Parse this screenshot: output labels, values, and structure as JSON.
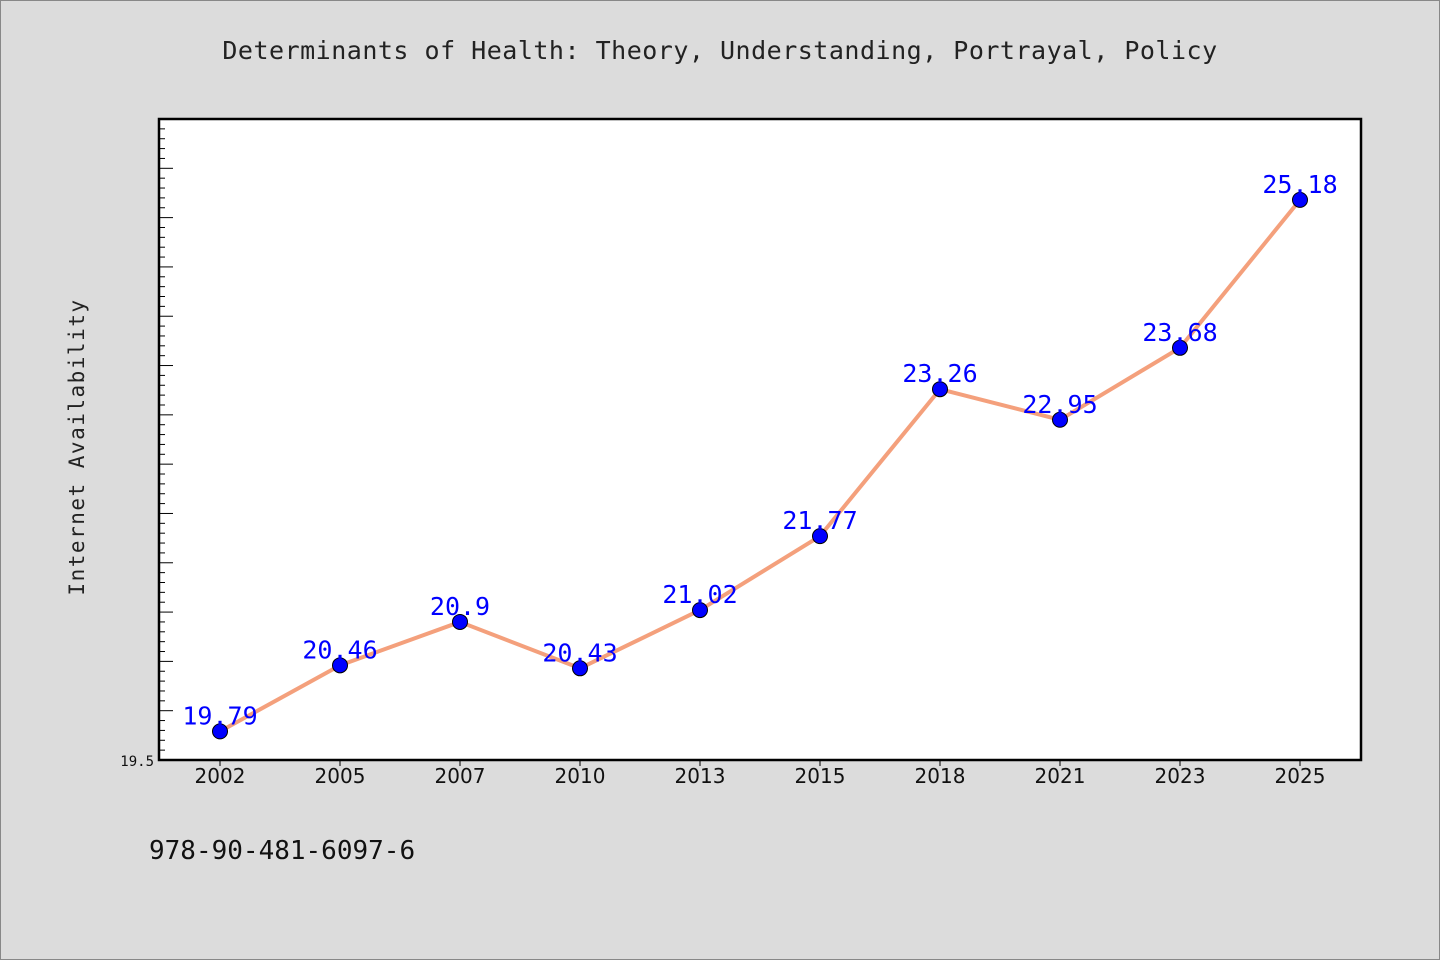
{
  "chart_data": {
    "type": "line",
    "title": "Determinants of Health: Theory, Understanding, Portrayal, Policy",
    "xlabel": "",
    "ylabel": "Internet Availability",
    "categories": [
      "2002",
      "2005",
      "2007",
      "2010",
      "2013",
      "2015",
      "2018",
      "2021",
      "2023",
      "2025"
    ],
    "series": [
      {
        "values": [
          19.79,
          20.46,
          20.9,
          20.43,
          21.02,
          21.77,
          23.26,
          22.95,
          23.68,
          25.18
        ],
        "data_labels": [
          "19.79",
          "20.46",
          "20.9",
          "20.43",
          "21.02",
          "21.77",
          "23.26",
          "22.95",
          "23.68",
          "25.18"
        ]
      }
    ],
    "ylim": [
      19.5,
      26.0
    ],
    "y_tick_labels": [
      "19.5"
    ],
    "grid": false,
    "colors": {
      "line": "#f4a07c",
      "marker": "#0000ff",
      "data_label": "#0000ff",
      "plot_background": "#ffffff",
      "figure_background": "#dcdcdc"
    }
  },
  "footer": {
    "isbn": "978-90-481-6097-6"
  }
}
